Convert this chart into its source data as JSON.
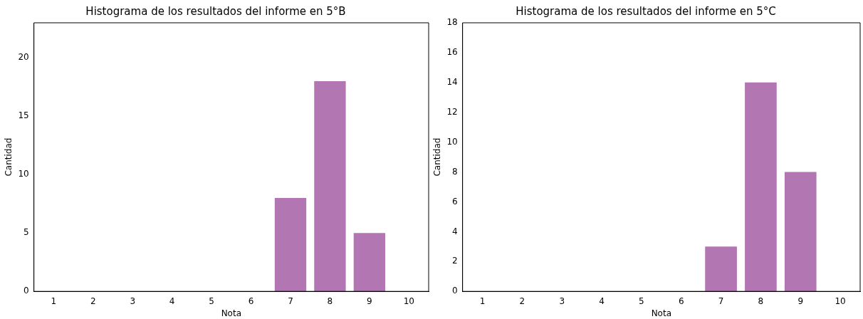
{
  "chart_data": [
    {
      "type": "bar",
      "title": "Histograma de los resultados del informe en 5°B",
      "xlabel": "Nota",
      "ylabel": "Cantidad",
      "categories": [
        "1",
        "2",
        "3",
        "4",
        "5",
        "6",
        "7",
        "8",
        "9",
        "10"
      ],
      "values": [
        0,
        0,
        0,
        0,
        0,
        0,
        8,
        18,
        5,
        0
      ],
      "color": "#b276b2",
      "ylim": [
        0,
        23
      ],
      "yticks": [
        0,
        5,
        10,
        15,
        20
      ],
      "grid": false,
      "legend": false
    },
    {
      "type": "bar",
      "title": "Histograma de los resultados del informe en 5°C",
      "xlabel": "Nota",
      "ylabel": "Cantidad",
      "categories": [
        "1",
        "2",
        "3",
        "4",
        "5",
        "6",
        "7",
        "8",
        "9",
        "10"
      ],
      "values": [
        0,
        0,
        0,
        0,
        0,
        0,
        3,
        14,
        8,
        0
      ],
      "color": "#b276b2",
      "ylim": [
        0,
        18
      ],
      "yticks": [
        0,
        2,
        4,
        6,
        8,
        10,
        12,
        14,
        16,
        18
      ],
      "grid": false,
      "legend": false
    }
  ]
}
